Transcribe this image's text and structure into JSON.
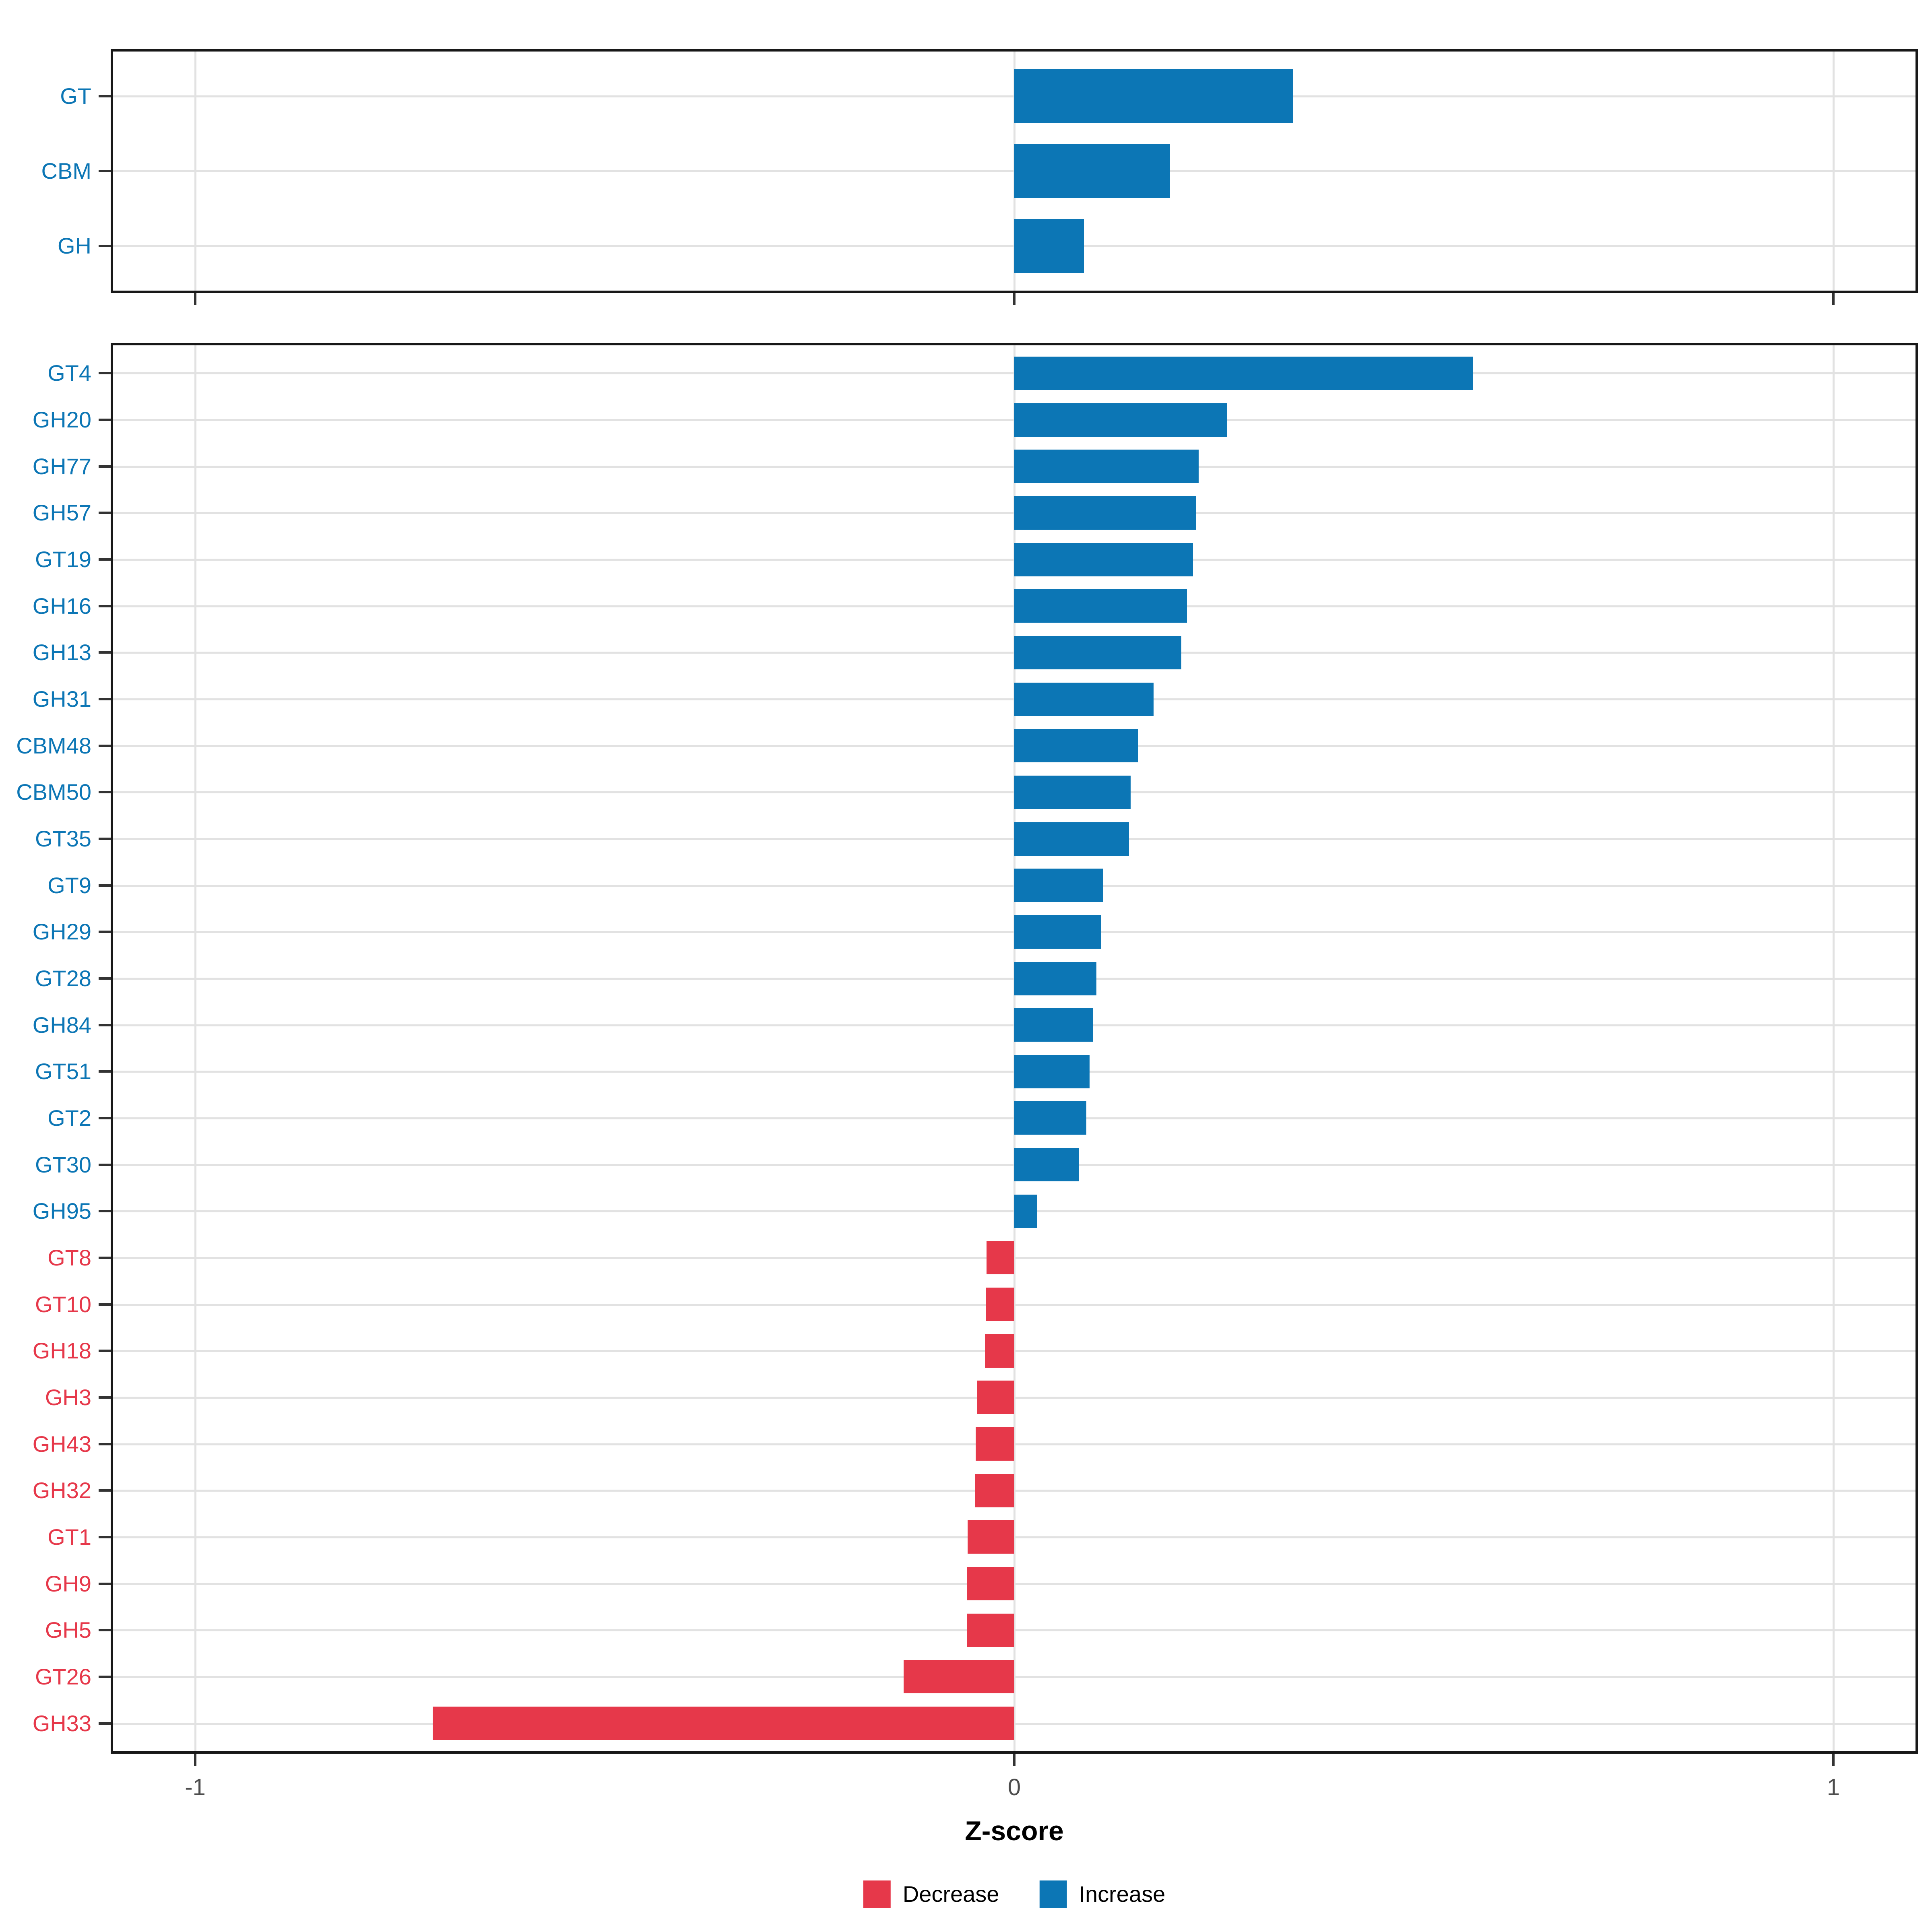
{
  "chart_data": [
    {
      "type": "bar",
      "orientation": "horizontal",
      "panel": "top-summary",
      "title": "",
      "xlabel": "Z-score",
      "ylabel": "",
      "xlim": [
        -1.1,
        1.1
      ],
      "grid": true,
      "categories": [
        "GT",
        "CBM",
        "GH"
      ],
      "values": [
        0.34,
        0.19,
        0.085
      ],
      "directions": [
        "increase",
        "increase",
        "increase"
      ]
    },
    {
      "type": "bar",
      "orientation": "horizontal",
      "panel": "bottom-families",
      "title": "",
      "xlabel": "Z-score",
      "ylabel": "",
      "xlim": [
        -1.1,
        1.1
      ],
      "grid": true,
      "categories": [
        "GT4",
        "GH20",
        "GH77",
        "GH57",
        "GT19",
        "GH16",
        "GH13",
        "GH31",
        "CBM48",
        "CBM50",
        "GT35",
        "GT9",
        "GH29",
        "GT28",
        "GH84",
        "GT51",
        "GT2",
        "GT30",
        "GH95",
        "GT8",
        "GT10",
        "GH18",
        "GH3",
        "GH43",
        "GH32",
        "GT1",
        "GH9",
        "GH5",
        "GT26",
        "GH33"
      ],
      "values": [
        0.56,
        0.26,
        0.225,
        0.222,
        0.218,
        0.211,
        0.204,
        0.17,
        0.151,
        0.142,
        0.14,
        0.108,
        0.106,
        0.1,
        0.096,
        0.092,
        0.088,
        0.079,
        0.028,
        -0.034,
        -0.035,
        -0.036,
        -0.045,
        -0.047,
        -0.048,
        -0.057,
        -0.058,
        -0.058,
        -0.135,
        -0.71
      ],
      "directions": [
        "increase",
        "increase",
        "increase",
        "increase",
        "increase",
        "increase",
        "increase",
        "increase",
        "increase",
        "increase",
        "increase",
        "increase",
        "increase",
        "increase",
        "increase",
        "increase",
        "increase",
        "increase",
        "increase",
        "decrease",
        "decrease",
        "decrease",
        "decrease",
        "decrease",
        "decrease",
        "decrease",
        "decrease",
        "decrease",
        "decrease",
        "decrease"
      ]
    }
  ],
  "axis": {
    "xlabel": "Z-score",
    "tick_labels": [
      "-1",
      "0",
      "1"
    ],
    "tick_values": [
      -1,
      0,
      1
    ],
    "xlim": [
      -1.1,
      1.1
    ]
  },
  "legend": {
    "position": "bottom-center",
    "items": [
      {
        "label": "Decrease",
        "color": "#e6384a"
      },
      {
        "label": "Increase",
        "color": "#0c76b5"
      }
    ]
  },
  "colors": {
    "increase": "#0c76b5",
    "decrease": "#e6384a",
    "gridline": "#e2e2e2",
    "panel_border": "#181818",
    "tick_mark": "#333333",
    "tick_label": "#4d4d4d",
    "background": "#ffffff"
  }
}
